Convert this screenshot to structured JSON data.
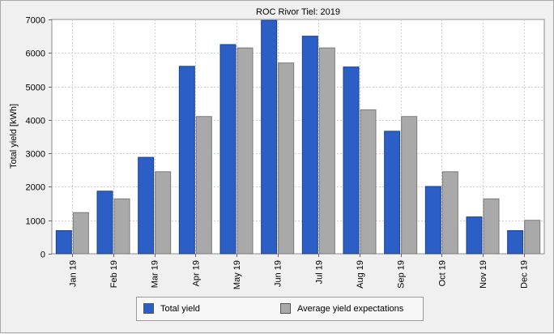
{
  "chart_data": {
    "type": "bar",
    "title": "ROC Rivor Tiel: 2019",
    "ylabel": "Total yield [kWh]",
    "xlabel": "",
    "ylim": [
      0,
      7000
    ],
    "yticks": [
      0,
      1000,
      2000,
      3000,
      4000,
      5000,
      6000,
      7000
    ],
    "grid": true,
    "legend_position": "bottom",
    "categories": [
      "Jan 19",
      "Feb 19",
      "Mar 19",
      "Apr 19",
      "May 19",
      "Jun 19",
      "Jul 19",
      "Aug 19",
      "Sep 19",
      "Oct 19",
      "Nov 19",
      "Dec 19"
    ],
    "series": [
      {
        "name": "Total yield",
        "color": "#2c5fc6",
        "values": [
          690,
          1870,
          2880,
          5600,
          6250,
          6970,
          6500,
          5580,
          3660,
          2010,
          1100,
          690
        ]
      },
      {
        "name": "Average yield expectations",
        "color": "#a9a9a9",
        "values": [
          1230,
          1640,
          2450,
          4100,
          6150,
          5700,
          6150,
          4300,
          4100,
          2450,
          1640,
          1000
        ]
      }
    ]
  }
}
